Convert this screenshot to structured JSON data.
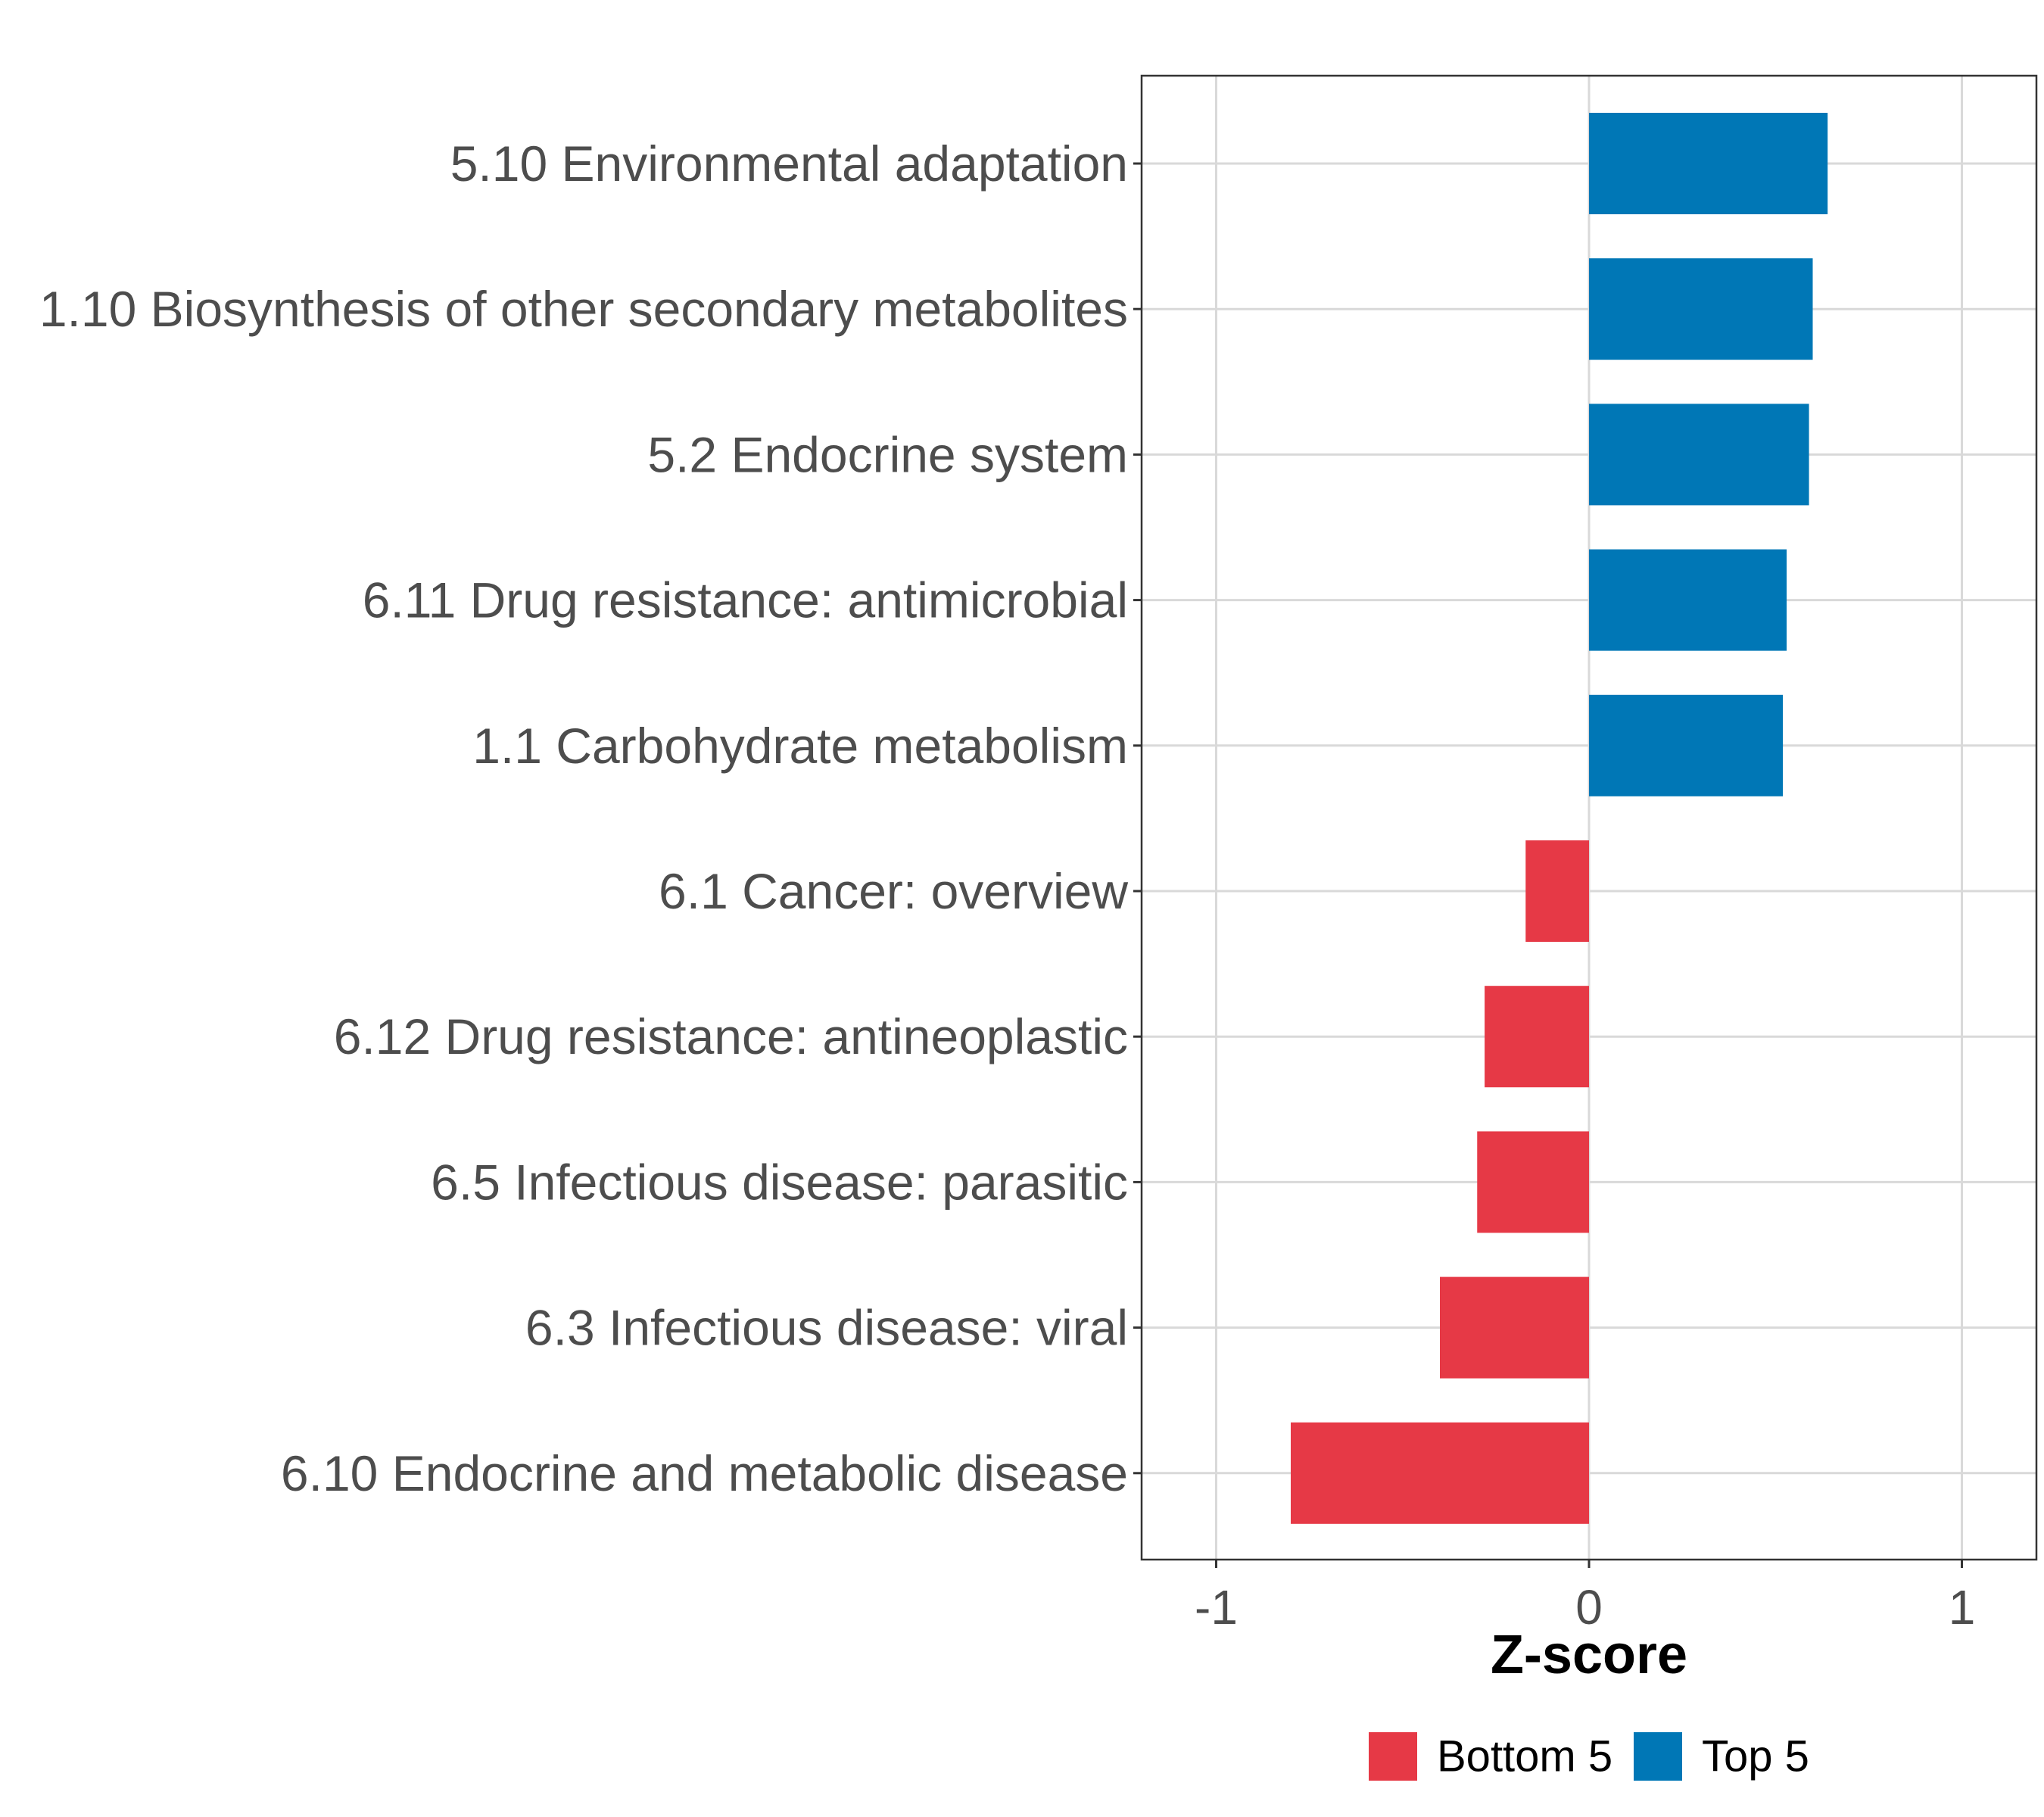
{
  "chart_data": {
    "type": "bar",
    "orientation": "horizontal",
    "title": "",
    "xlabel": "Z-score",
    "ylabel": "",
    "xlim": [
      -1.2,
      1.2
    ],
    "xticks": [
      -1,
      0,
      1
    ],
    "xtick_labels": [
      "-1",
      "0",
      "1"
    ],
    "grid": true,
    "legend_position": "bottom",
    "categories": [
      "5.10 Environmental adaptation",
      "1.10 Biosynthesis of other secondary metabolites",
      "5.2 Endocrine system",
      "6.11 Drug resistance: antimicrobial",
      "1.1 Carbohydrate metabolism",
      "6.1 Cancer: overview",
      "6.12 Drug resistance: antineoplastic",
      "6.5 Infectious disease: parasitic",
      "6.3 Infectious disease: viral",
      "6.10 Endocrine and metabolic disease"
    ],
    "values": [
      0.64,
      0.6,
      0.59,
      0.53,
      0.52,
      -0.17,
      -0.28,
      -0.3,
      -0.4,
      -0.8
    ],
    "groups": [
      "Top 5",
      "Top 5",
      "Top 5",
      "Top 5",
      "Top 5",
      "Bottom 5",
      "Bottom 5",
      "Bottom 5",
      "Bottom 5",
      "Bottom 5"
    ],
    "legend": [
      {
        "name": "Bottom 5",
        "color": "#e63946"
      },
      {
        "name": "Top 5",
        "color": "#0077b6"
      }
    ]
  },
  "colors": {
    "top": "#0077b6",
    "bottom": "#e63946",
    "grid": "#d9d9d9",
    "frame": "#333333"
  }
}
